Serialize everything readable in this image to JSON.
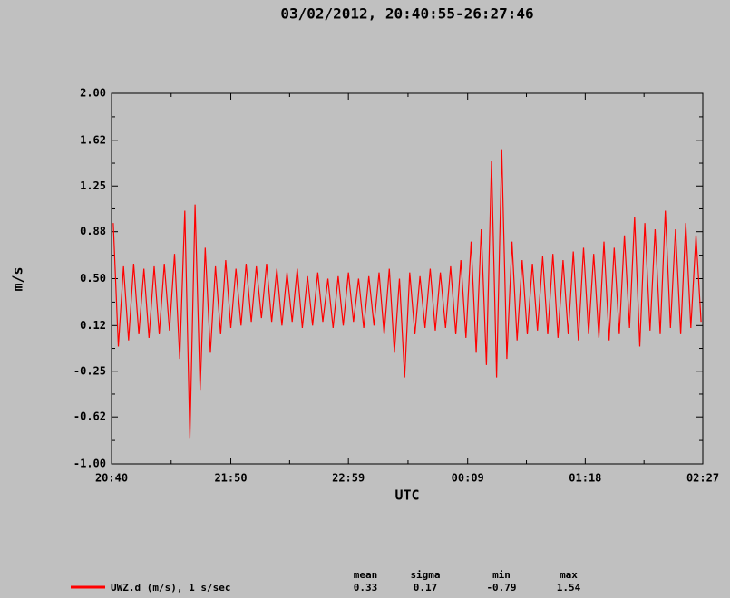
{
  "chart_data": {
    "type": "line",
    "title": "03/02/2012, 20:40:55-26:27:46",
    "y_label": "m/s",
    "x_label": "UTC",
    "ylim": [
      -1.0,
      2.0
    ],
    "yticks": [
      {
        "value": -1.0,
        "label": "-1.00"
      },
      -0.62,
      -0.25,
      0.12,
      {
        "value": 0.5,
        "label": "0.50"
      },
      0.88,
      1.25,
      1.62,
      {
        "value": 2.0,
        "label": "2.00"
      }
    ],
    "xlim": [
      "20:40",
      "02:27"
    ],
    "xticks": [
      "20:40",
      "21:50",
      "22:59",
      "00:09",
      "01:18",
      "02:27"
    ],
    "x": [
      "20:41",
      "20:44",
      "20:47",
      "20:50",
      "20:53",
      "20:56",
      "20:59",
      "21:02",
      "21:05",
      "21:08",
      "21:11",
      "21:14",
      "21:17",
      "21:20",
      "21:23",
      "21:26",
      "21:29",
      "21:32",
      "21:35",
      "21:38",
      "21:41",
      "21:44",
      "21:47",
      "21:50",
      "21:53",
      "21:56",
      "21:59",
      "22:02",
      "22:05",
      "22:08",
      "22:11",
      "22:14",
      "22:17",
      "22:20",
      "22:23",
      "22:26",
      "22:29",
      "22:32",
      "22:35",
      "22:38",
      "22:41",
      "22:44",
      "22:47",
      "22:50",
      "22:53",
      "22:56",
      "22:59",
      "23:02",
      "23:05",
      "23:08",
      "23:11",
      "23:14",
      "23:17",
      "23:20",
      "23:23",
      "23:26",
      "23:29",
      "23:32",
      "23:35",
      "23:38",
      "23:41",
      "23:44",
      "23:47",
      "23:50",
      "23:53",
      "23:56",
      "23:59",
      "00:02",
      "00:05",
      "00:08",
      "00:11",
      "00:14",
      "00:17",
      "00:20",
      "00:23",
      "00:26",
      "00:29",
      "00:32",
      "00:35",
      "00:38",
      "00:41",
      "00:44",
      "00:47",
      "00:50",
      "00:53",
      "00:56",
      "00:59",
      "01:02",
      "01:05",
      "01:08",
      "01:11",
      "01:14",
      "01:17",
      "01:20",
      "01:23",
      "01:26",
      "01:29",
      "01:32",
      "01:35",
      "01:38",
      "01:41",
      "01:44",
      "01:47",
      "01:50",
      "01:53",
      "01:56",
      "01:59",
      "02:02",
      "02:05",
      "02:08",
      "02:11",
      "02:14",
      "02:17",
      "02:20",
      "02:23",
      "02:26"
    ],
    "series": [
      {
        "name": "UWZ.d (m/s), 1 s/sec",
        "color": "#ff0000",
        "values": [
          0.95,
          -0.05,
          0.6,
          0.0,
          0.62,
          0.05,
          0.58,
          0.02,
          0.6,
          0.05,
          0.62,
          0.08,
          0.7,
          -0.15,
          1.05,
          -0.79,
          1.1,
          -0.4,
          0.75,
          -0.1,
          0.6,
          0.05,
          0.65,
          0.1,
          0.58,
          0.12,
          0.62,
          0.15,
          0.6,
          0.18,
          0.62,
          0.15,
          0.58,
          0.12,
          0.55,
          0.15,
          0.58,
          0.1,
          0.52,
          0.12,
          0.55,
          0.15,
          0.5,
          0.1,
          0.52,
          0.12,
          0.55,
          0.15,
          0.5,
          0.1,
          0.52,
          0.12,
          0.55,
          0.05,
          0.58,
          -0.1,
          0.5,
          -0.3,
          0.55,
          0.05,
          0.52,
          0.1,
          0.58,
          0.08,
          0.55,
          0.1,
          0.6,
          0.05,
          0.65,
          0.02,
          0.8,
          -0.1,
          0.9,
          -0.2,
          1.45,
          -0.3,
          1.54,
          -0.15,
          0.8,
          0.0,
          0.65,
          0.05,
          0.62,
          0.08,
          0.68,
          0.05,
          0.7,
          0.02,
          0.65,
          0.05,
          0.72,
          0.0,
          0.75,
          0.05,
          0.7,
          0.02,
          0.8,
          0.0,
          0.75,
          0.05,
          0.85,
          0.1,
          1.0,
          -0.05,
          0.95,
          0.08,
          0.9,
          0.05,
          1.05,
          0.1,
          0.9,
          0.05,
          0.95,
          0.1,
          0.85,
          0.15
        ]
      }
    ],
    "stats": {
      "headers": [
        "mean",
        "sigma",
        "min",
        "max"
      ],
      "values": [
        "0.33",
        "0.17",
        "-0.79",
        "1.54"
      ]
    }
  }
}
